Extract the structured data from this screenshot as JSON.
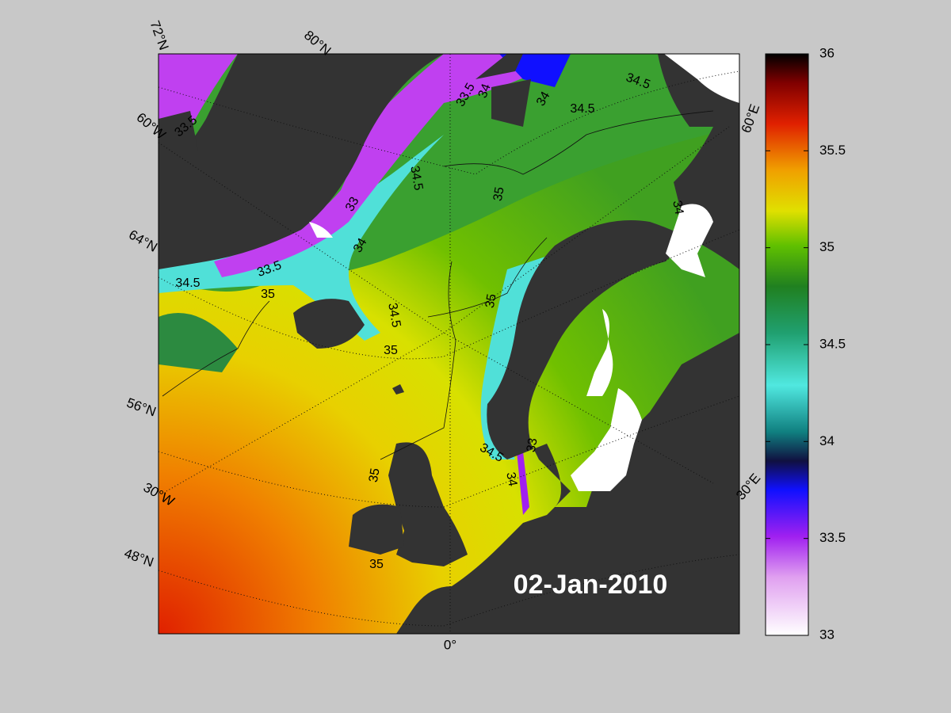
{
  "map": {
    "date": "02-Jan-2010",
    "graticule_labels": [
      "72°N",
      "80°N",
      "60°W",
      "60°E",
      "64°N",
      "56°N",
      "30°W",
      "30°E",
      "48°N",
      "0°"
    ],
    "contour_labels": [
      33.5,
      33.5,
      34,
      34,
      34.5,
      34.5,
      34.5,
      35,
      33,
      34,
      33.5,
      34.5,
      35,
      34.5,
      35,
      35,
      34.5,
      33,
      34,
      35,
      35,
      34
    ]
  },
  "colorbar": {
    "lim": [
      33,
      36
    ],
    "ticks": [
      33,
      33.5,
      34,
      34.5,
      35,
      35.5,
      36
    ]
  }
}
